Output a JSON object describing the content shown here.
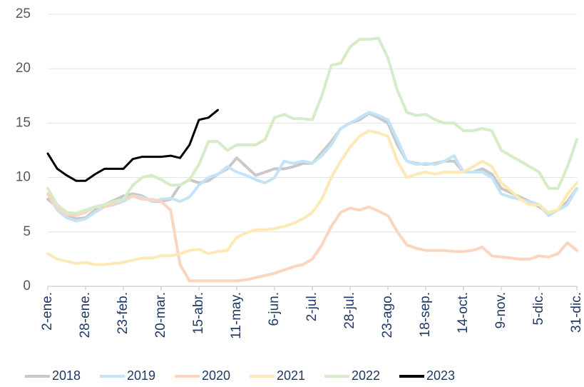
{
  "chart_data": {
    "type": "line",
    "categories": [
      "2-ene.",
      null,
      null,
      null,
      "28-ene.",
      null,
      null,
      null,
      "23-feb.",
      null,
      null,
      null,
      "20-mar.",
      null,
      null,
      null,
      "15-abr.",
      null,
      null,
      null,
      "11-may.",
      null,
      null,
      null,
      "6-jun.",
      null,
      null,
      null,
      "2-jul.",
      null,
      null,
      null,
      "28-jul.",
      null,
      null,
      null,
      "23-ago.",
      null,
      null,
      null,
      "18-sep.",
      null,
      null,
      null,
      "14-oct.",
      null,
      null,
      null,
      "9-nov.",
      null,
      null,
      null,
      "5-dic.",
      null,
      null,
      null,
      "31-dic."
    ],
    "ylim": [
      0,
      25
    ],
    "yticks": [
      0,
      5,
      10,
      15,
      20,
      25
    ],
    "grid": true,
    "legend": "bottom",
    "series": [
      {
        "name": "2018",
        "color": "#c8c8c8",
        "values": [
          8,
          7.3,
          6.5,
          6.2,
          6.3,
          7,
          7.5,
          7.9,
          8.3,
          8.5,
          8.3,
          7.8,
          7.8,
          8,
          9.3,
          9.8,
          9.5,
          9.7,
          10.3,
          10.8,
          11.8,
          11,
          10.2,
          10.5,
          10.8,
          10.8,
          11,
          11.3,
          11.3,
          12.3,
          13.3,
          14.5,
          15,
          15.3,
          15.9,
          15.5,
          15,
          13,
          11.5,
          11.3,
          11.2,
          11.3,
          11.5,
          11.5,
          10.5,
          10.5,
          10.8,
          10.3,
          9,
          8.6,
          8.2,
          7.8,
          7.3,
          6.8,
          7,
          7.8,
          9
        ]
      },
      {
        "name": "2019",
        "color": "#c5e3f6",
        "values": [
          8.5,
          7,
          6.3,
          6,
          6.2,
          6.8,
          7.3,
          7.5,
          7.8,
          8.3,
          8.2,
          7.8,
          8,
          8.1,
          7.8,
          8.2,
          9.3,
          10,
          10.3,
          11,
          10.5,
          10.2,
          9.8,
          9.5,
          10,
          11.5,
          11.3,
          11.5,
          11.3,
          12,
          13,
          14.5,
          15,
          15.5,
          16,
          15.7,
          15.3,
          13.5,
          11.5,
          11.2,
          11.3,
          11.2,
          11.5,
          12,
          10.5,
          10.5,
          10.5,
          10,
          8.5,
          8.2,
          8,
          7.8,
          7.5,
          6.5,
          7,
          7.5,
          9
        ]
      },
      {
        "name": "2020",
        "color": "#fbd5bf",
        "values": [
          8.5,
          7.2,
          6.6,
          6.5,
          6.8,
          7.3,
          7.3,
          7.6,
          8,
          8.3,
          8,
          8,
          7.8,
          7,
          2,
          0.5,
          0.5,
          0.5,
          0.5,
          0.5,
          0.5,
          0.6,
          0.8,
          1,
          1.2,
          1.5,
          1.8,
          2,
          2.5,
          3.8,
          5.5,
          6.8,
          7.2,
          7,
          7.3,
          6.9,
          6.5,
          5,
          3.8,
          3.5,
          3.3,
          3.3,
          3.3,
          3.2,
          3.2,
          3.3,
          3.6,
          2.8,
          2.7,
          2.6,
          2.5,
          2.5,
          2.8,
          2.7,
          3,
          4,
          3.3
        ]
      },
      {
        "name": "2021",
        "color": "#fde9b5",
        "values": [
          3,
          2.5,
          2.3,
          2.1,
          2.2,
          2,
          2,
          2.1,
          2.2,
          2.4,
          2.6,
          2.6,
          2.8,
          2.8,
          3,
          3.3,
          3.4,
          3,
          3.2,
          3.3,
          4.5,
          4.9,
          5.2,
          5.2,
          5.3,
          5.5,
          5.8,
          6.2,
          6.8,
          8,
          10,
          11.5,
          12.8,
          13.8,
          14.3,
          14.1,
          13.8,
          11.5,
          10,
          10.3,
          10.5,
          10.3,
          10.5,
          10.5,
          10.5,
          11,
          11.5,
          11,
          9.5,
          8.8,
          8,
          7.5,
          7.5,
          6.8,
          7,
          8.5,
          9.5
        ]
      },
      {
        "name": "2022",
        "color": "#d5ecc9",
        "values": [
          9,
          7.5,
          6.8,
          6.7,
          7,
          7.3,
          7.5,
          7.8,
          8,
          9.3,
          10,
          10.2,
          9.8,
          9.3,
          9.3,
          9.8,
          11.2,
          13.3,
          13.3,
          12.5,
          13,
          13,
          13,
          13.5,
          15.5,
          15.8,
          15.4,
          15.4,
          15.3,
          17.5,
          20.3,
          20.5,
          22,
          22.7,
          22.7,
          22.8,
          21,
          18,
          16,
          15.7,
          15.8,
          15.3,
          15,
          15,
          14.3,
          14.3,
          14.5,
          14.3,
          12.5,
          12,
          11.5,
          11,
          10.5,
          9,
          9,
          11,
          13.5
        ]
      },
      {
        "name": "2023",
        "color": "#000000",
        "values": [
          12.2,
          10.8,
          10.2,
          9.7,
          9.7,
          10.3,
          10.8,
          10.8,
          10.8,
          11.7,
          11.9,
          11.9,
          11.9,
          12,
          11.8,
          13,
          15.3,
          15.5,
          16.2,
          null,
          null,
          null,
          null,
          null,
          null,
          null,
          null,
          null,
          null,
          null,
          null,
          null,
          null,
          null,
          null,
          null,
          null,
          null,
          null,
          null,
          null,
          null,
          null,
          null,
          null,
          null,
          null,
          null,
          null,
          null,
          null,
          null,
          null,
          null,
          null,
          null,
          null
        ]
      }
    ]
  }
}
